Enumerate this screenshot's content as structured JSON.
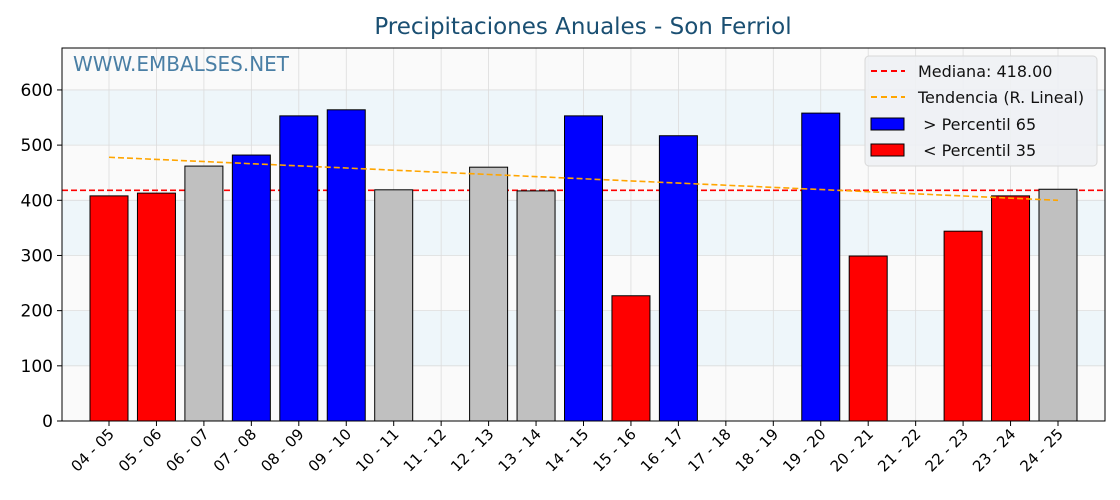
{
  "chart_data": {
    "type": "bar",
    "title": "Precipitaciones Anuales - Son Ferriol",
    "watermark": "WWW.EMBALSES.NET",
    "xlabel": "",
    "ylabel": "",
    "ylim": [
      0,
      676
    ],
    "yticks": [
      0,
      100,
      200,
      300,
      400,
      500,
      600
    ],
    "categories": [
      "04 - 05",
      "05 - 06",
      "06 - 07",
      "07 - 08",
      "08 - 09",
      "09 - 10",
      "10 - 11",
      "11 - 12",
      "12 - 13",
      "13 - 14",
      "14 - 15",
      "15 - 16",
      "16 - 17",
      "17 - 18",
      "18 - 19",
      "19 - 20",
      "20 - 21",
      "21 - 22",
      "22 - 23",
      "23 - 24",
      "24 - 25"
    ],
    "values": [
      408,
      413,
      462,
      482,
      553,
      564,
      419,
      0,
      460,
      417,
      553,
      227,
      517,
      0,
      0,
      558,
      299,
      0,
      344,
      408,
      420
    ],
    "classes": [
      "low",
      "low",
      "mid",
      "high",
      "high",
      "high",
      "mid",
      "mid",
      "mid",
      "mid",
      "high",
      "low",
      "high",
      "mid",
      "mid",
      "high",
      "low",
      "mid",
      "low",
      "low",
      "mid"
    ],
    "colors": {
      "high": "#0000ff",
      "low": "#ff0000",
      "mid": "#c0c0c0",
      "median": "#ff0000",
      "trend": "#ffa500",
      "title": "#1a4f72",
      "watermark": "#4a7fa5"
    },
    "median": 418.0,
    "trend": {
      "start": 478,
      "end": 400
    },
    "legend": {
      "placement": "top-right",
      "entries": [
        "Mediana: 418.00",
        "Tendencia (R. Lineal)",
        " > Percentil 65",
        " < Percentil 35"
      ]
    },
    "grid": true
  }
}
